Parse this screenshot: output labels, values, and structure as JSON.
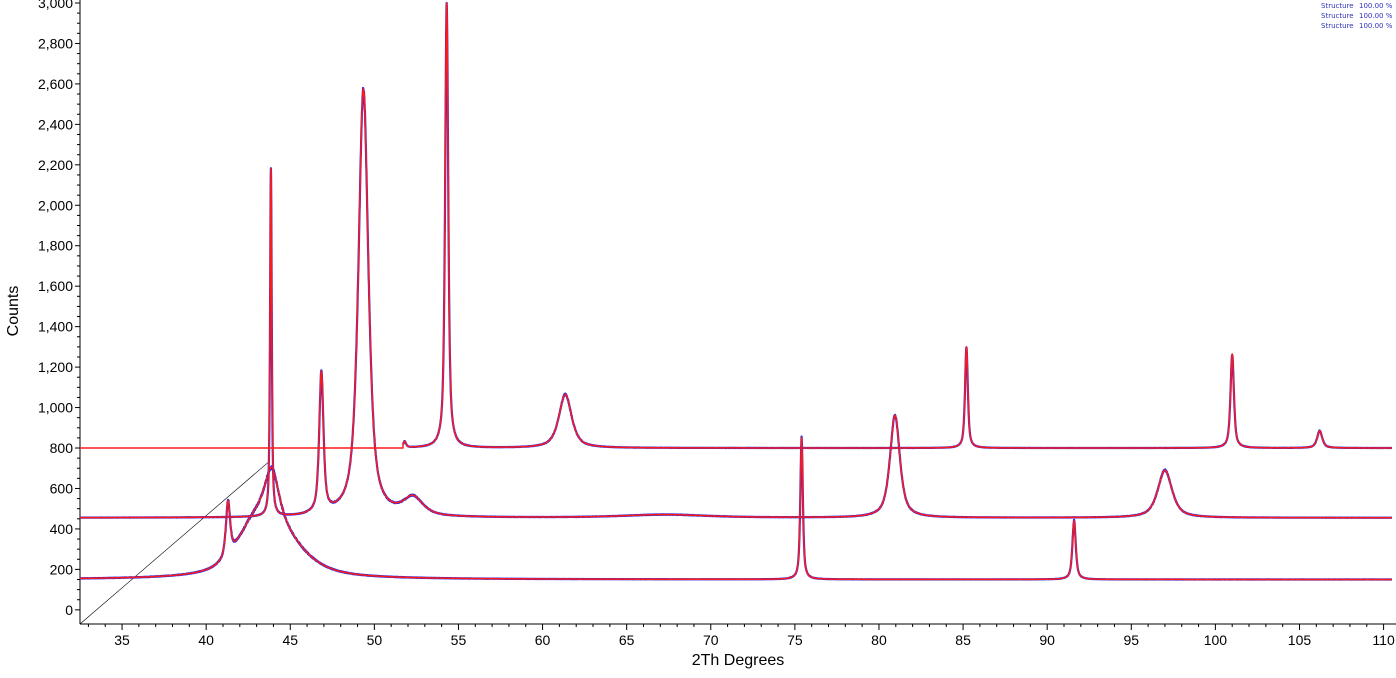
{
  "chart_data": {
    "type": "line",
    "title": "",
    "xlabel": "2Th Degrees",
    "ylabel": "Counts",
    "xlim": [
      32.5,
      110.5
    ],
    "ylim": [
      -70,
      3000
    ],
    "x_ticks": [
      35,
      40,
      45,
      50,
      55,
      60,
      65,
      70,
      75,
      80,
      85,
      90,
      95,
      100,
      105,
      110
    ],
    "x_tick_labels": [
      "35",
      "40",
      "45",
      "50",
      "55",
      "60",
      "65",
      "70",
      "75",
      "80",
      "85",
      "90",
      "95",
      "100",
      "105",
      "110"
    ],
    "y_ticks": [
      0,
      200,
      400,
      600,
      800,
      1000,
      1200,
      1400,
      1600,
      1800,
      2000,
      2200,
      2400,
      2600,
      2800,
      3000
    ],
    "y_tick_labels": [
      "0",
      "200",
      "400",
      "600",
      "800",
      "1,000",
      "1,200",
      "1,400",
      "1,600",
      "1,800",
      "2,000",
      "2,200",
      "2,400",
      "2,600",
      "2,800",
      "3,000"
    ],
    "grid": false,
    "legend_position": "top-right",
    "legend": [
      {
        "label": "Structure",
        "value": "100.00 %"
      },
      {
        "label": "Structure",
        "value": "100.00 %"
      },
      {
        "label": "Structure",
        "value": "100.00 %"
      }
    ],
    "colors": {
      "calculated": "#ff1a1a",
      "observed": "#2a2ae0",
      "axis": "#000000",
      "guide_line": "#000000"
    },
    "series": [
      {
        "baseline": 150,
        "x_start": 32.5,
        "x_end": 110.5,
        "peaks": [
          {
            "x": 41.3,
            "height": 270,
            "width": 0.15
          },
          {
            "x": 42.8,
            "height": 160,
            "width": 1.2
          },
          {
            "x": 43.9,
            "height": 250,
            "width": 0.5
          },
          {
            "x": 44.2,
            "height": 220,
            "width": 1.8
          },
          {
            "x": 75.4,
            "height": 700,
            "width": 0.09
          },
          {
            "x": 91.6,
            "height": 290,
            "width": 0.12
          }
        ]
      },
      {
        "baseline": 455,
        "x_start": 32.5,
        "x_end": 110.5,
        "peaks": [
          {
            "x": 43.85,
            "height": 1720,
            "width": 0.06
          },
          {
            "x": 46.85,
            "height": 695,
            "width": 0.15
          },
          {
            "x": 49.35,
            "height": 2115,
            "width": 0.35
          },
          {
            "x": 52.3,
            "height": 90,
            "width": 0.7
          },
          {
            "x": 67.3,
            "height": 15,
            "width": 3
          },
          {
            "x": 80.95,
            "height": 505,
            "width": 0.35
          },
          {
            "x": 97.0,
            "height": 235,
            "width": 0.5
          }
        ]
      },
      {
        "baseline": 800,
        "x_start": 51.7,
        "x_end": 110.5,
        "pre_baseline": 800,
        "peaks": [
          {
            "x": 51.8,
            "height": 30,
            "width": 0.1
          },
          {
            "x": 54.3,
            "height": 2200,
            "width": 0.11
          },
          {
            "x": 61.35,
            "height": 265,
            "width": 0.45
          },
          {
            "x": 85.2,
            "height": 500,
            "width": 0.1
          },
          {
            "x": 101.0,
            "height": 465,
            "width": 0.12
          },
          {
            "x": 106.2,
            "height": 85,
            "width": 0.18
          }
        ]
      }
    ],
    "guide_line": {
      "x_from": 32.5,
      "y_from": -70,
      "x_to": 43.7,
      "y_to": 730
    }
  }
}
